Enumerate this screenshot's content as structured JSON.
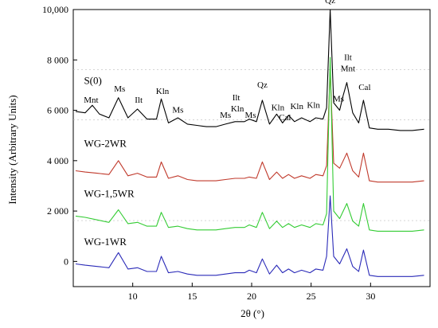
{
  "chart_data": {
    "type": "line",
    "title": "",
    "xlabel": "2θ (°)",
    "ylabel": "Intensity (Arbitrary Units)",
    "xlim": [
      5,
      35
    ],
    "ylim": [
      -1000,
      10000
    ],
    "x_ticks": [
      10,
      15,
      20,
      25,
      30
    ],
    "y_ticks": [
      0,
      2000,
      4000,
      6000,
      8000,
      10000
    ],
    "y_tick_labels": [
      "0",
      "2 000",
      "4 000",
      "6 000",
      "8 000",
      "10,000"
    ],
    "grid": false,
    "series": [
      {
        "name": "S(0)",
        "color": "#000000",
        "x": [
          5.2,
          6.0,
          6.6,
          7.2,
          8.0,
          8.8,
          9.6,
          10.4,
          11.2,
          12.0,
          12.4,
          13.0,
          13.8,
          14.6,
          15.4,
          16.2,
          17.0,
          17.8,
          18.6,
          19.4,
          19.8,
          20.4,
          20.9,
          21.5,
          22.1,
          22.6,
          23.1,
          23.6,
          24.2,
          24.9,
          25.4,
          26.0,
          26.3,
          26.6,
          26.9,
          27.4,
          27.7,
          28.0,
          28.5,
          29.0,
          29.4,
          29.9,
          30.6,
          31.5,
          32.5,
          33.5,
          34.5
        ],
        "y": [
          5950,
          5900,
          6200,
          5850,
          5700,
          6500,
          5700,
          6050,
          5650,
          5650,
          6450,
          5500,
          5700,
          5450,
          5400,
          5350,
          5350,
          5450,
          5550,
          5550,
          5650,
          5550,
          6400,
          5450,
          5850,
          5500,
          5800,
          5550,
          5700,
          5550,
          5700,
          5650,
          6100,
          10000,
          6300,
          6000,
          6600,
          7100,
          5900,
          5500,
          6400,
          5300,
          5250,
          5250,
          5200,
          5200,
          5250
        ]
      },
      {
        "name": "WG-2WR",
        "color": "#c0392b",
        "x": [
          5.2,
          6.0,
          7.0,
          8.0,
          8.8,
          9.6,
          10.4,
          11.2,
          12.0,
          12.4,
          13.0,
          13.8,
          14.6,
          15.4,
          16.2,
          17.0,
          17.8,
          18.6,
          19.4,
          19.8,
          20.4,
          20.9,
          21.5,
          22.1,
          22.6,
          23.1,
          23.6,
          24.2,
          24.9,
          25.4,
          26.0,
          26.3,
          26.6,
          26.9,
          27.4,
          27.7,
          28.0,
          28.5,
          29.0,
          29.4,
          29.9,
          30.6,
          31.5,
          32.5,
          33.5,
          34.5
        ],
        "y": [
          3600,
          3550,
          3500,
          3450,
          4000,
          3400,
          3500,
          3350,
          3350,
          3950,
          3300,
          3400,
          3250,
          3200,
          3200,
          3200,
          3250,
          3300,
          3300,
          3350,
          3300,
          3950,
          3250,
          3550,
          3300,
          3450,
          3300,
          3400,
          3300,
          3450,
          3400,
          3800,
          7600,
          3900,
          3700,
          4000,
          4300,
          3600,
          3350,
          4300,
          3200,
          3150,
          3150,
          3150,
          3150,
          3200
        ]
      },
      {
        "name": "WG-1,5WR",
        "color": "#33cc33",
        "x": [
          5.2,
          6.0,
          7.0,
          8.0,
          8.8,
          9.6,
          10.4,
          11.2,
          12.0,
          12.4,
          13.0,
          13.8,
          14.6,
          15.4,
          16.2,
          17.0,
          17.8,
          18.6,
          19.4,
          19.8,
          20.4,
          20.9,
          21.5,
          22.1,
          22.6,
          23.1,
          23.6,
          24.2,
          24.9,
          25.4,
          26.0,
          26.3,
          26.6,
          26.9,
          27.4,
          27.7,
          28.0,
          28.5,
          29.0,
          29.4,
          29.9,
          30.6,
          31.5,
          32.5,
          33.5,
          34.5
        ],
        "y": [
          1800,
          1750,
          1650,
          1550,
          2050,
          1500,
          1550,
          1400,
          1400,
          1950,
          1350,
          1400,
          1300,
          1250,
          1250,
          1250,
          1300,
          1350,
          1350,
          1450,
          1350,
          1950,
          1300,
          1600,
          1350,
          1500,
          1350,
          1450,
          1350,
          1500,
          1450,
          1900,
          8100,
          2000,
          1700,
          2000,
          2300,
          1600,
          1400,
          2300,
          1250,
          1200,
          1200,
          1200,
          1200,
          1250
        ]
      },
      {
        "name": "WG-1WR",
        "color": "#2a2ab8",
        "x": [
          5.2,
          6.0,
          7.0,
          8.0,
          8.8,
          9.6,
          10.4,
          11.2,
          12.0,
          12.4,
          13.0,
          13.8,
          14.6,
          15.4,
          16.2,
          17.0,
          17.8,
          18.6,
          19.4,
          19.8,
          20.4,
          20.9,
          21.5,
          22.1,
          22.6,
          23.1,
          23.6,
          24.2,
          24.9,
          25.4,
          26.0,
          26.3,
          26.6,
          26.9,
          27.4,
          27.7,
          28.0,
          28.5,
          29.0,
          29.4,
          29.9,
          30.6,
          31.5,
          32.5,
          33.5,
          34.5
        ],
        "y": [
          -100,
          -150,
          -200,
          -250,
          350,
          -300,
          -250,
          -400,
          -400,
          200,
          -450,
          -400,
          -500,
          -550,
          -550,
          -550,
          -500,
          -450,
          -450,
          -350,
          -450,
          100,
          -500,
          -150,
          -450,
          -300,
          -450,
          -350,
          -450,
          -300,
          -350,
          200,
          2600,
          200,
          -100,
          200,
          500,
          -200,
          -400,
          450,
          -550,
          -600,
          -600,
          -600,
          -600,
          -550
        ]
      }
    ],
    "series_labels": [
      {
        "text": "S(0)",
        "x": 5.9,
        "y": 7050
      },
      {
        "text": "WG-2WR",
        "x": 5.9,
        "y": 4550
      },
      {
        "text": "WG-1,5WR",
        "x": 5.9,
        "y": 2550
      },
      {
        "text": "WG-1WR",
        "x": 5.9,
        "y": 650
      }
    ],
    "annotations": [
      {
        "text": "Mnt",
        "x": 6.5,
        "y": 6300
      },
      {
        "text": "Ms",
        "x": 8.9,
        "y": 6750
      },
      {
        "text": "Ilt",
        "x": 10.5,
        "y": 6300
      },
      {
        "text": "Kln",
        "x": 12.5,
        "y": 6650
      },
      {
        "text": "Ms",
        "x": 13.8,
        "y": 5900
      },
      {
        "text": "Ms",
        "x": 17.8,
        "y": 5700
      },
      {
        "text": "Ilt",
        "x": 18.7,
        "y": 6400
      },
      {
        "text": "Kln",
        "x": 18.8,
        "y": 5950
      },
      {
        "text": "Ms",
        "x": 19.9,
        "y": 5700
      },
      {
        "text": "Qz",
        "x": 20.9,
        "y": 6900
      },
      {
        "text": "Kln",
        "x": 22.2,
        "y": 6000
      },
      {
        "text": "Cal",
        "x": 22.8,
        "y": 5600
      },
      {
        "text": "Kln",
        "x": 23.8,
        "y": 6050
      },
      {
        "text": "Kln",
        "x": 25.2,
        "y": 6100
      },
      {
        "text": "Qz",
        "x": 26.6,
        "y": 10250
      },
      {
        "text": "Ms",
        "x": 27.3,
        "y": 6350
      },
      {
        "text": "Ilt",
        "x": 28.1,
        "y": 8000
      },
      {
        "text": "Mnt",
        "x": 28.1,
        "y": 7550
      },
      {
        "text": "Cal",
        "x": 29.5,
        "y": 6800
      }
    ]
  }
}
